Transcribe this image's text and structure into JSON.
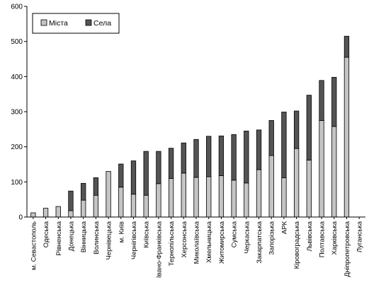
{
  "chart_data": {
    "type": "bar",
    "stacked": true,
    "title": "",
    "xlabel": "",
    "ylabel": "",
    "ylim": [
      0,
      600
    ],
    "yticks": [
      0,
      100,
      200,
      300,
      400,
      500,
      600
    ],
    "grid": false,
    "legend_position": "top-left",
    "categories": [
      "м. Севастополь",
      "Одеська",
      "Рівненська",
      "Донецька",
      "Вінницька",
      "Волинська",
      "Чернівецька",
      "м. Київ",
      "Чернігівська",
      "Київська",
      "Івано-Франківська",
      "Тернопільська",
      "Херсонська",
      "Миколаївська",
      "Хмельницька",
      "Житомирська",
      "Сумська",
      "Черкаська",
      "Закарпатська",
      "Запорізька",
      "АРК",
      "Кіровоградська",
      "Львівська",
      "Полтавська",
      "Харківська",
      "Дніпропетровська",
      "Луганська"
    ],
    "series": [
      {
        "name": "Міста",
        "color": "#c4c4c4",
        "values": [
          12,
          25,
          30,
          18,
          48,
          62,
          130,
          85,
          65,
          62,
          95,
          110,
          125,
          113,
          115,
          118,
          105,
          97,
          135,
          175,
          112,
          195,
          162,
          275,
          258,
          455,
          0
        ]
      },
      {
        "name": "Села",
        "color": "#545454",
        "values": [
          0,
          0,
          0,
          56,
          48,
          50,
          0,
          66,
          95,
          125,
          92,
          86,
          86,
          108,
          115,
          113,
          130,
          148,
          113,
          100,
          187,
          107,
          185,
          114,
          140,
          60,
          0
        ]
      }
    ]
  }
}
